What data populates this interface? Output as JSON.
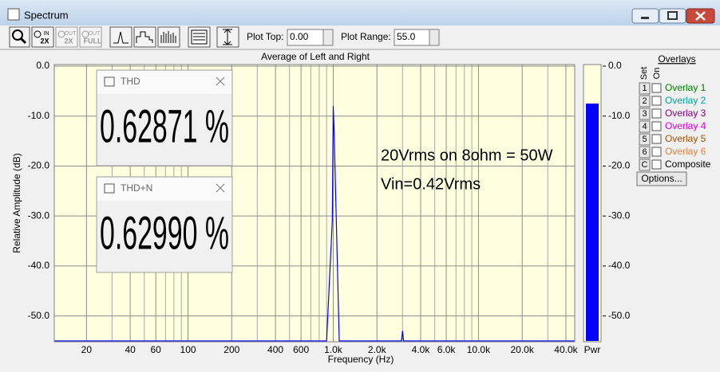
{
  "window": {
    "title": "Spectrum"
  },
  "toolbar": {
    "buttons": [
      [
        "IN",
        "2X"
      ],
      [
        "OUT",
        "2X"
      ],
      [
        "OUT",
        "FULL"
      ]
    ],
    "plot_top_label": "Plot Top:",
    "plot_top_value": "0.00",
    "plot_range_label": "Plot Range:",
    "plot_range_value": "55.0"
  },
  "chart": {
    "type": "line",
    "title": "Average of Left and Right",
    "x_label": "Frequency (Hz)",
    "y_label": "Relative Amplitude (dB)",
    "x_log": true,
    "grid": true,
    "xlim": [
      12,
      46000
    ],
    "ylim": [
      -55,
      0
    ],
    "xticks": [
      20,
      40,
      60,
      100,
      200,
      400,
      600,
      {
        "value": 1000,
        "label": "1.0k"
      },
      {
        "value": 2000,
        "label": "2.0k"
      },
      {
        "value": 4000,
        "label": "4.0k"
      },
      {
        "value": 6000,
        "label": "6.0k"
      },
      {
        "value": 10000,
        "label": "10.0k"
      },
      {
        "value": 20000,
        "label": "20.0k"
      },
      {
        "value": 40000,
        "label": "40.0k"
      }
    ],
    "x_minor_ticks": [
      30,
      50,
      70,
      80,
      90,
      300,
      500,
      700,
      800,
      900,
      3000,
      5000,
      7000,
      8000,
      9000,
      30000
    ],
    "yticks": [
      {
        "value": 0,
        "label": "0.0"
      },
      {
        "value": -10,
        "label": "-10.0"
      },
      {
        "value": -20,
        "label": "-20.0"
      },
      {
        "value": -30,
        "label": "-30.0"
      },
      {
        "value": -40,
        "label": "-40.0"
      },
      {
        "value": -50,
        "label": "-50.0"
      }
    ],
    "series": [
      {
        "color": "#0000ff",
        "x": [
          12,
          900,
          985,
          1000,
          1015,
          1100,
          2950,
          3000,
          3050,
          46000
        ],
        "values": [
          -55,
          -55,
          -31,
          -8,
          -13.5,
          -55,
          -55,
          -53,
          -55,
          -55
        ]
      }
    ],
    "annotations": [
      "20Vrms on 8ohm = 50W",
      "Vin=0.42Vrms"
    ]
  },
  "power_meter": {
    "label": "Pwr",
    "value": -7.5,
    "color": "#0000ff",
    "ylim": [
      -55,
      0
    ],
    "yticks": [
      {
        "value": 0,
        "label": "0.0"
      },
      {
        "value": -10,
        "label": "-10.0"
      },
      {
        "value": -20,
        "label": "-20.0"
      },
      {
        "value": -30,
        "label": "-30.0"
      },
      {
        "value": -40,
        "label": "-40.0"
      },
      {
        "value": -50,
        "label": "-50.0"
      }
    ]
  },
  "panels": [
    {
      "title": "THD",
      "value": "0.62871 %"
    },
    {
      "title": "THD+N",
      "value": "0.62990 %"
    }
  ],
  "overlays": {
    "title": "Overlays",
    "set_header": "Set",
    "on_header": "On",
    "rows": [
      {
        "set": "1",
        "name": "Overlay 1",
        "color": "#008000"
      },
      {
        "set": "2",
        "name": "Overlay 2",
        "color": "#00a0a0"
      },
      {
        "set": "3",
        "name": "Overlay 3",
        "color": "#800080"
      },
      {
        "set": "4",
        "name": "Overlay 4",
        "color": "#e000e0"
      },
      {
        "set": "5",
        "name": "Overlay 5",
        "color": "#a05000"
      },
      {
        "set": "6",
        "name": "Overlay 6",
        "color": "#e08040"
      },
      {
        "set": "C",
        "name": "Composite",
        "color": "#000000"
      }
    ],
    "options_button": "Options..."
  }
}
